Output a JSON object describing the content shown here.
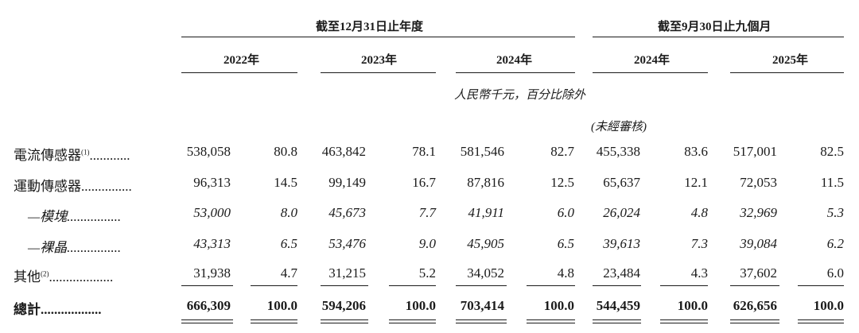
{
  "header": {
    "group_year": "截至12月31日止年度",
    "group_nine": "截至9月30日止九個月",
    "years": [
      "2022年",
      "2023年",
      "2024年",
      "2024年",
      "2025年"
    ],
    "unit_note": "人民幣千元，百分比除外",
    "unaudited": "(未經審核)"
  },
  "rows": [
    {
      "label": "電流傳感器",
      "note": "(1)",
      "dots": "............",
      "values": [
        "538,058",
        "80.8",
        "463,842",
        "78.1",
        "581,546",
        "82.7",
        "455,338",
        "83.6",
        "517,001",
        "82.5"
      ]
    },
    {
      "label": "運動傳感器",
      "note": "",
      "dots": "...............",
      "values": [
        "96,313",
        "14.5",
        "99,149",
        "16.7",
        "87,816",
        "12.5",
        "65,637",
        "12.1",
        "72,053",
        "11.5"
      ]
    },
    {
      "label": "—模塊",
      "note": "",
      "dots": "................",
      "values": [
        "53,000",
        "8.0",
        "45,673",
        "7.7",
        "41,911",
        "6.0",
        "26,024",
        "4.8",
        "32,969",
        "5.3"
      ]
    },
    {
      "label": "—裸晶",
      "note": "",
      "dots": "................",
      "values": [
        "43,313",
        "6.5",
        "53,476",
        "9.0",
        "45,905",
        "6.5",
        "39,613",
        "7.3",
        "39,084",
        "6.2"
      ]
    },
    {
      "label": "其他",
      "note": "(2)",
      "dots": "...................",
      "values": [
        "31,938",
        "4.7",
        "31,215",
        "5.2",
        "34,052",
        "4.8",
        "23,484",
        "4.3",
        "37,602",
        "6.0"
      ]
    },
    {
      "label": "總計",
      "note": "",
      "dots": "..................",
      "values": [
        "666,309",
        "100.0",
        "594,206",
        "100.0",
        "703,414",
        "100.0",
        "544,459",
        "100.0",
        "626,656",
        "100.0"
      ]
    }
  ]
}
